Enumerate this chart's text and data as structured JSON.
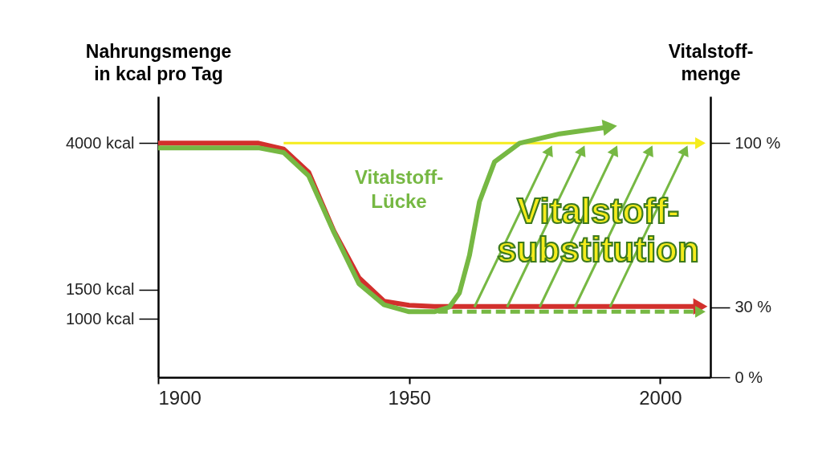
{
  "chart_data": {
    "type": "line",
    "ylabel": "Nahrungsmenge\nin kcal pro Tag",
    "y2label": "Vitalstoff-\nmenge",
    "xlim": [
      1900,
      2010
    ],
    "xticks": [
      1900,
      1950,
      2000
    ],
    "ylim": [
      0,
      4800
    ],
    "yticks": [
      {
        "value": 1000,
        "label": "1000 kcal"
      },
      {
        "value": 1500,
        "label": "1500 kcal"
      },
      {
        "value": 4000,
        "label": "4000 kcal"
      }
    ],
    "y2lim": [
      0,
      120
    ],
    "y2ticks": [
      {
        "value": 0,
        "label": "0 %"
      },
      {
        "value": 30,
        "label": "30 %"
      },
      {
        "value": 100,
        "label": "100 %"
      }
    ],
    "grid": false,
    "series": [
      {
        "color": "#f5ec1c",
        "axis": "y2",
        "x": [
          1925,
          2008
        ],
        "values": [
          100,
          100
        ]
      },
      {
        "color": "#d2302c",
        "axis": "y",
        "x": [
          1900,
          1920,
          1925,
          1930,
          1935,
          1940,
          1945,
          1950,
          1955,
          2008
        ],
        "values": [
          4000,
          4000,
          3900,
          3500,
          2500,
          1700,
          1300,
          1230,
          1210,
          1210
        ]
      },
      {
        "color": "#76b843",
        "axis": "y2",
        "line_style": "dashed",
        "x": [
          1950,
          2008
        ],
        "values": [
          28,
          28
        ]
      },
      {
        "color": "#76b843",
        "axis": "y2",
        "x": [
          1900,
          1920,
          1925,
          1930,
          1935,
          1940,
          1945,
          1950,
          1955,
          1958,
          1960,
          1962,
          1964,
          1967,
          1972,
          1980,
          1990
        ],
        "values": [
          98,
          98,
          96,
          86,
          62,
          40,
          31,
          28,
          28,
          30,
          36,
          52,
          75,
          92,
          100,
          104,
          107
        ]
      },
      {
        "color": "#76b843",
        "axis": "y2",
        "x": [
          1963,
          1978
        ],
        "values": [
          30,
          97
        ]
      },
      {
        "color": "#76b843",
        "axis": "y2",
        "x": [
          1969.5,
          1984.5
        ],
        "values": [
          30,
          97
        ]
      },
      {
        "color": "#76b843",
        "axis": "y2",
        "x": [
          1976,
          1991
        ],
        "values": [
          30,
          97
        ]
      },
      {
        "color": "#76b843",
        "axis": "y2",
        "x": [
          1983,
          1998
        ],
        "values": [
          30,
          97
        ]
      },
      {
        "color": "#76b843",
        "axis": "y2",
        "x": [
          1990,
          2005
        ],
        "values": [
          30,
          97
        ]
      }
    ],
    "annotations": [
      "Vitalstoff-\nLücke",
      "Vitalstoff-\nsubstitution"
    ]
  }
}
